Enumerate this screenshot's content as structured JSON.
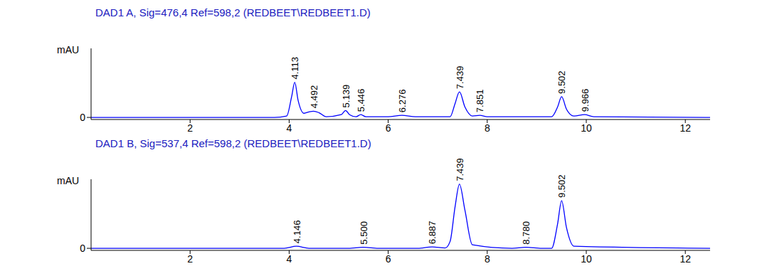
{
  "chart_data": [
    {
      "type": "line",
      "title": "DAD1 A, Sig=476,4 Ref=598,2 (REDBEET\\REDBEET1.D)",
      "y_label": "mAU",
      "color": "#0000ff",
      "x": [
        0,
        3.7,
        3.95,
        4.05,
        4.113,
        4.18,
        4.3,
        4.4,
        4.492,
        4.6,
        4.75,
        5.05,
        5.139,
        5.22,
        5.35,
        5.446,
        5.55,
        6.0,
        6.276,
        6.55,
        6.9,
        7.25,
        7.35,
        7.439,
        7.55,
        7.7,
        7.851,
        8.0,
        8.8,
        9.3,
        9.42,
        9.502,
        9.6,
        9.75,
        9.966,
        10.15,
        12.5
      ],
      "values": [
        0,
        0,
        2,
        30,
        51,
        25,
        6,
        8,
        9,
        7,
        1,
        4,
        10,
        4,
        1,
        4,
        1,
        1,
        3,
        1,
        1,
        1,
        20,
        37,
        15,
        2,
        3,
        1,
        1,
        1,
        15,
        30,
        12,
        2,
        4,
        1,
        0
      ],
      "annotations": [
        {
          "x": 4.113,
          "label": "4.113"
        },
        {
          "x": 4.492,
          "label": "4.492"
        },
        {
          "x": 5.139,
          "label": "5.139"
        },
        {
          "x": 5.446,
          "label": "5.446"
        },
        {
          "x": 6.276,
          "label": "6.276"
        },
        {
          "x": 7.439,
          "label": "7.439"
        },
        {
          "x": 7.851,
          "label": "7.851"
        },
        {
          "x": 9.502,
          "label": "9.502"
        },
        {
          "x": 9.966,
          "label": "9.966"
        }
      ],
      "xlim": [
        0,
        12.5
      ],
      "xticks": [
        2,
        4,
        6,
        8,
        10,
        12
      ],
      "ylim": [
        -3,
        100
      ],
      "yticks": [
        0
      ],
      "grid": false
    },
    {
      "type": "line",
      "title": "DAD1 B, Sig=537,4 Ref=598,2 (REDBEET\\REDBEET1.D)",
      "y_label": "mAU",
      "color": "#0000ff",
      "x": [
        0,
        3.9,
        4.146,
        4.4,
        5.2,
        5.5,
        5.8,
        6.6,
        6.887,
        7.15,
        7.25,
        7.35,
        7.439,
        7.55,
        7.7,
        8.5,
        8.78,
        9.1,
        9.3,
        9.42,
        9.502,
        9.6,
        9.75,
        12.5
      ],
      "values": [
        0,
        0,
        3,
        0,
        0,
        1.5,
        0,
        0,
        2,
        0.5,
        10,
        60,
        93,
        55,
        5,
        0,
        1.5,
        0,
        0,
        35,
        69,
        30,
        3,
        0
      ],
      "annotations": [
        {
          "x": 4.146,
          "label": "4.146"
        },
        {
          "x": 5.5,
          "label": "5.500"
        },
        {
          "x": 6.887,
          "label": "6.887"
        },
        {
          "x": 7.439,
          "label": "7.439"
        },
        {
          "x": 8.78,
          "label": "8.780"
        },
        {
          "x": 9.502,
          "label": "9.502"
        }
      ],
      "xlim": [
        0,
        12.5
      ],
      "xticks": [
        2,
        4,
        6,
        8,
        10,
        12
      ],
      "ylim": [
        -3,
        100
      ],
      "yticks": [
        0
      ],
      "grid": false
    }
  ]
}
